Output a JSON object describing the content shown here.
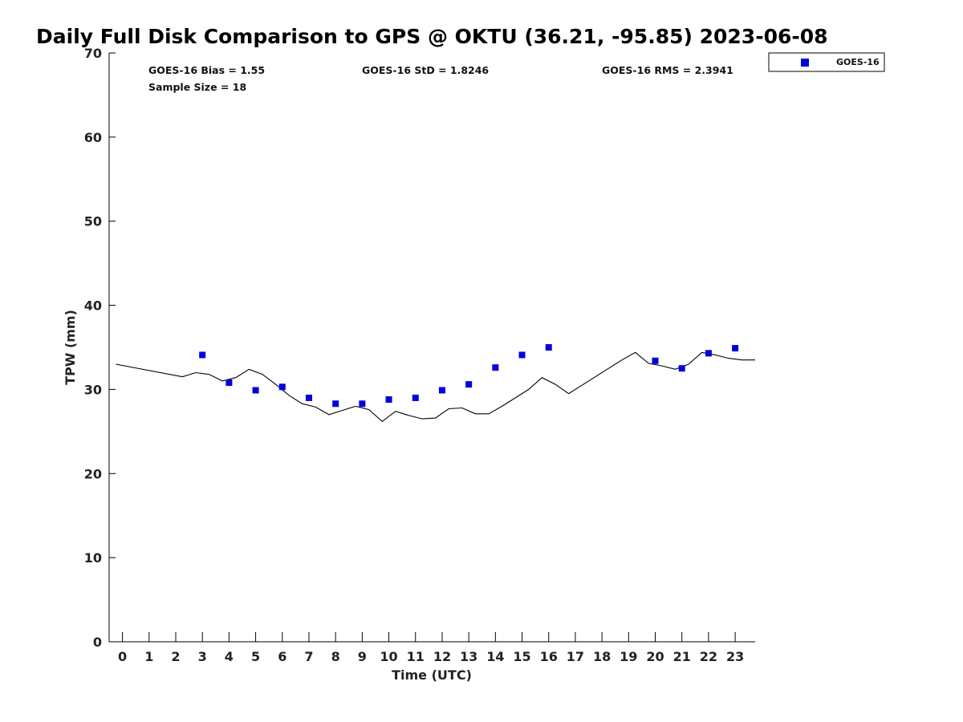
{
  "chart_data": {
    "type": "scatter",
    "title": "Daily Full Disk Comparison to GPS @ OKTU (36.21, -95.85) 2023-06-08",
    "xlabel": "Time (UTC)",
    "ylabel": "TPW (mm)",
    "xlim": [
      -0.5,
      23.75
    ],
    "ylim": [
      0,
      70
    ],
    "x_ticks": [
      0,
      1,
      2,
      3,
      4,
      5,
      6,
      7,
      8,
      9,
      10,
      11,
      12,
      13,
      14,
      15,
      16,
      17,
      18,
      19,
      20,
      21,
      22,
      23
    ],
    "y_ticks": [
      0,
      10,
      20,
      30,
      40,
      50,
      60,
      70
    ],
    "grid": false,
    "legend_position": "outside-top-right",
    "stats": {
      "bias": "GOES-16 Bias = 1.55",
      "std": "GOES-16 StD = 1.8246",
      "rms": "GOES-16 RMS = 2.3941",
      "sample_size": "Sample Size = 18"
    },
    "series": [
      {
        "name": "GOES-16",
        "kind": "scatter",
        "marker": "square",
        "color": "#0000dd",
        "x": [
          3,
          4,
          5,
          6,
          7,
          8,
          9,
          10,
          11,
          12,
          13,
          14,
          15,
          16,
          20,
          21,
          22,
          23
        ],
        "y": [
          34.1,
          30.8,
          29.9,
          30.3,
          29.0,
          28.3,
          28.3,
          28.8,
          29.0,
          29.9,
          30.6,
          32.6,
          34.1,
          35.0,
          33.4,
          32.5,
          34.3,
          34.9
        ]
      },
      {
        "kind": "line",
        "color": "#000000",
        "x": [
          -0.25,
          2.25,
          2.75,
          3.25,
          3.75,
          4.25,
          4.75,
          5.25,
          5.75,
          6.25,
          6.75,
          7.25,
          7.75,
          8.25,
          8.75,
          9.25,
          9.75,
          10.25,
          10.75,
          11.25,
          11.75,
          12.25,
          12.75,
          13.25,
          13.75,
          14.25,
          14.75,
          15.25,
          15.75,
          16.25,
          16.75,
          17.25,
          17.75,
          18.25,
          18.75,
          19.25,
          19.75,
          20.25,
          20.75,
          21.25,
          21.75,
          22.25,
          22.75,
          23.25,
          23.75
        ],
        "y": [
          33.0,
          31.5,
          32.0,
          31.8,
          31.0,
          31.4,
          32.4,
          31.8,
          30.6,
          29.3,
          28.3,
          27.9,
          27.0,
          27.5,
          28.0,
          27.6,
          26.2,
          27.4,
          26.9,
          26.5,
          26.6,
          27.7,
          27.8,
          27.1,
          27.1,
          28.0,
          29.0,
          30.0,
          31.4,
          30.6,
          29.5,
          30.5,
          31.5,
          32.5,
          33.5,
          34.4,
          33.1,
          32.8,
          32.4,
          33.0,
          34.4,
          34.1,
          33.7,
          33.5,
          33.5
        ]
      }
    ]
  }
}
